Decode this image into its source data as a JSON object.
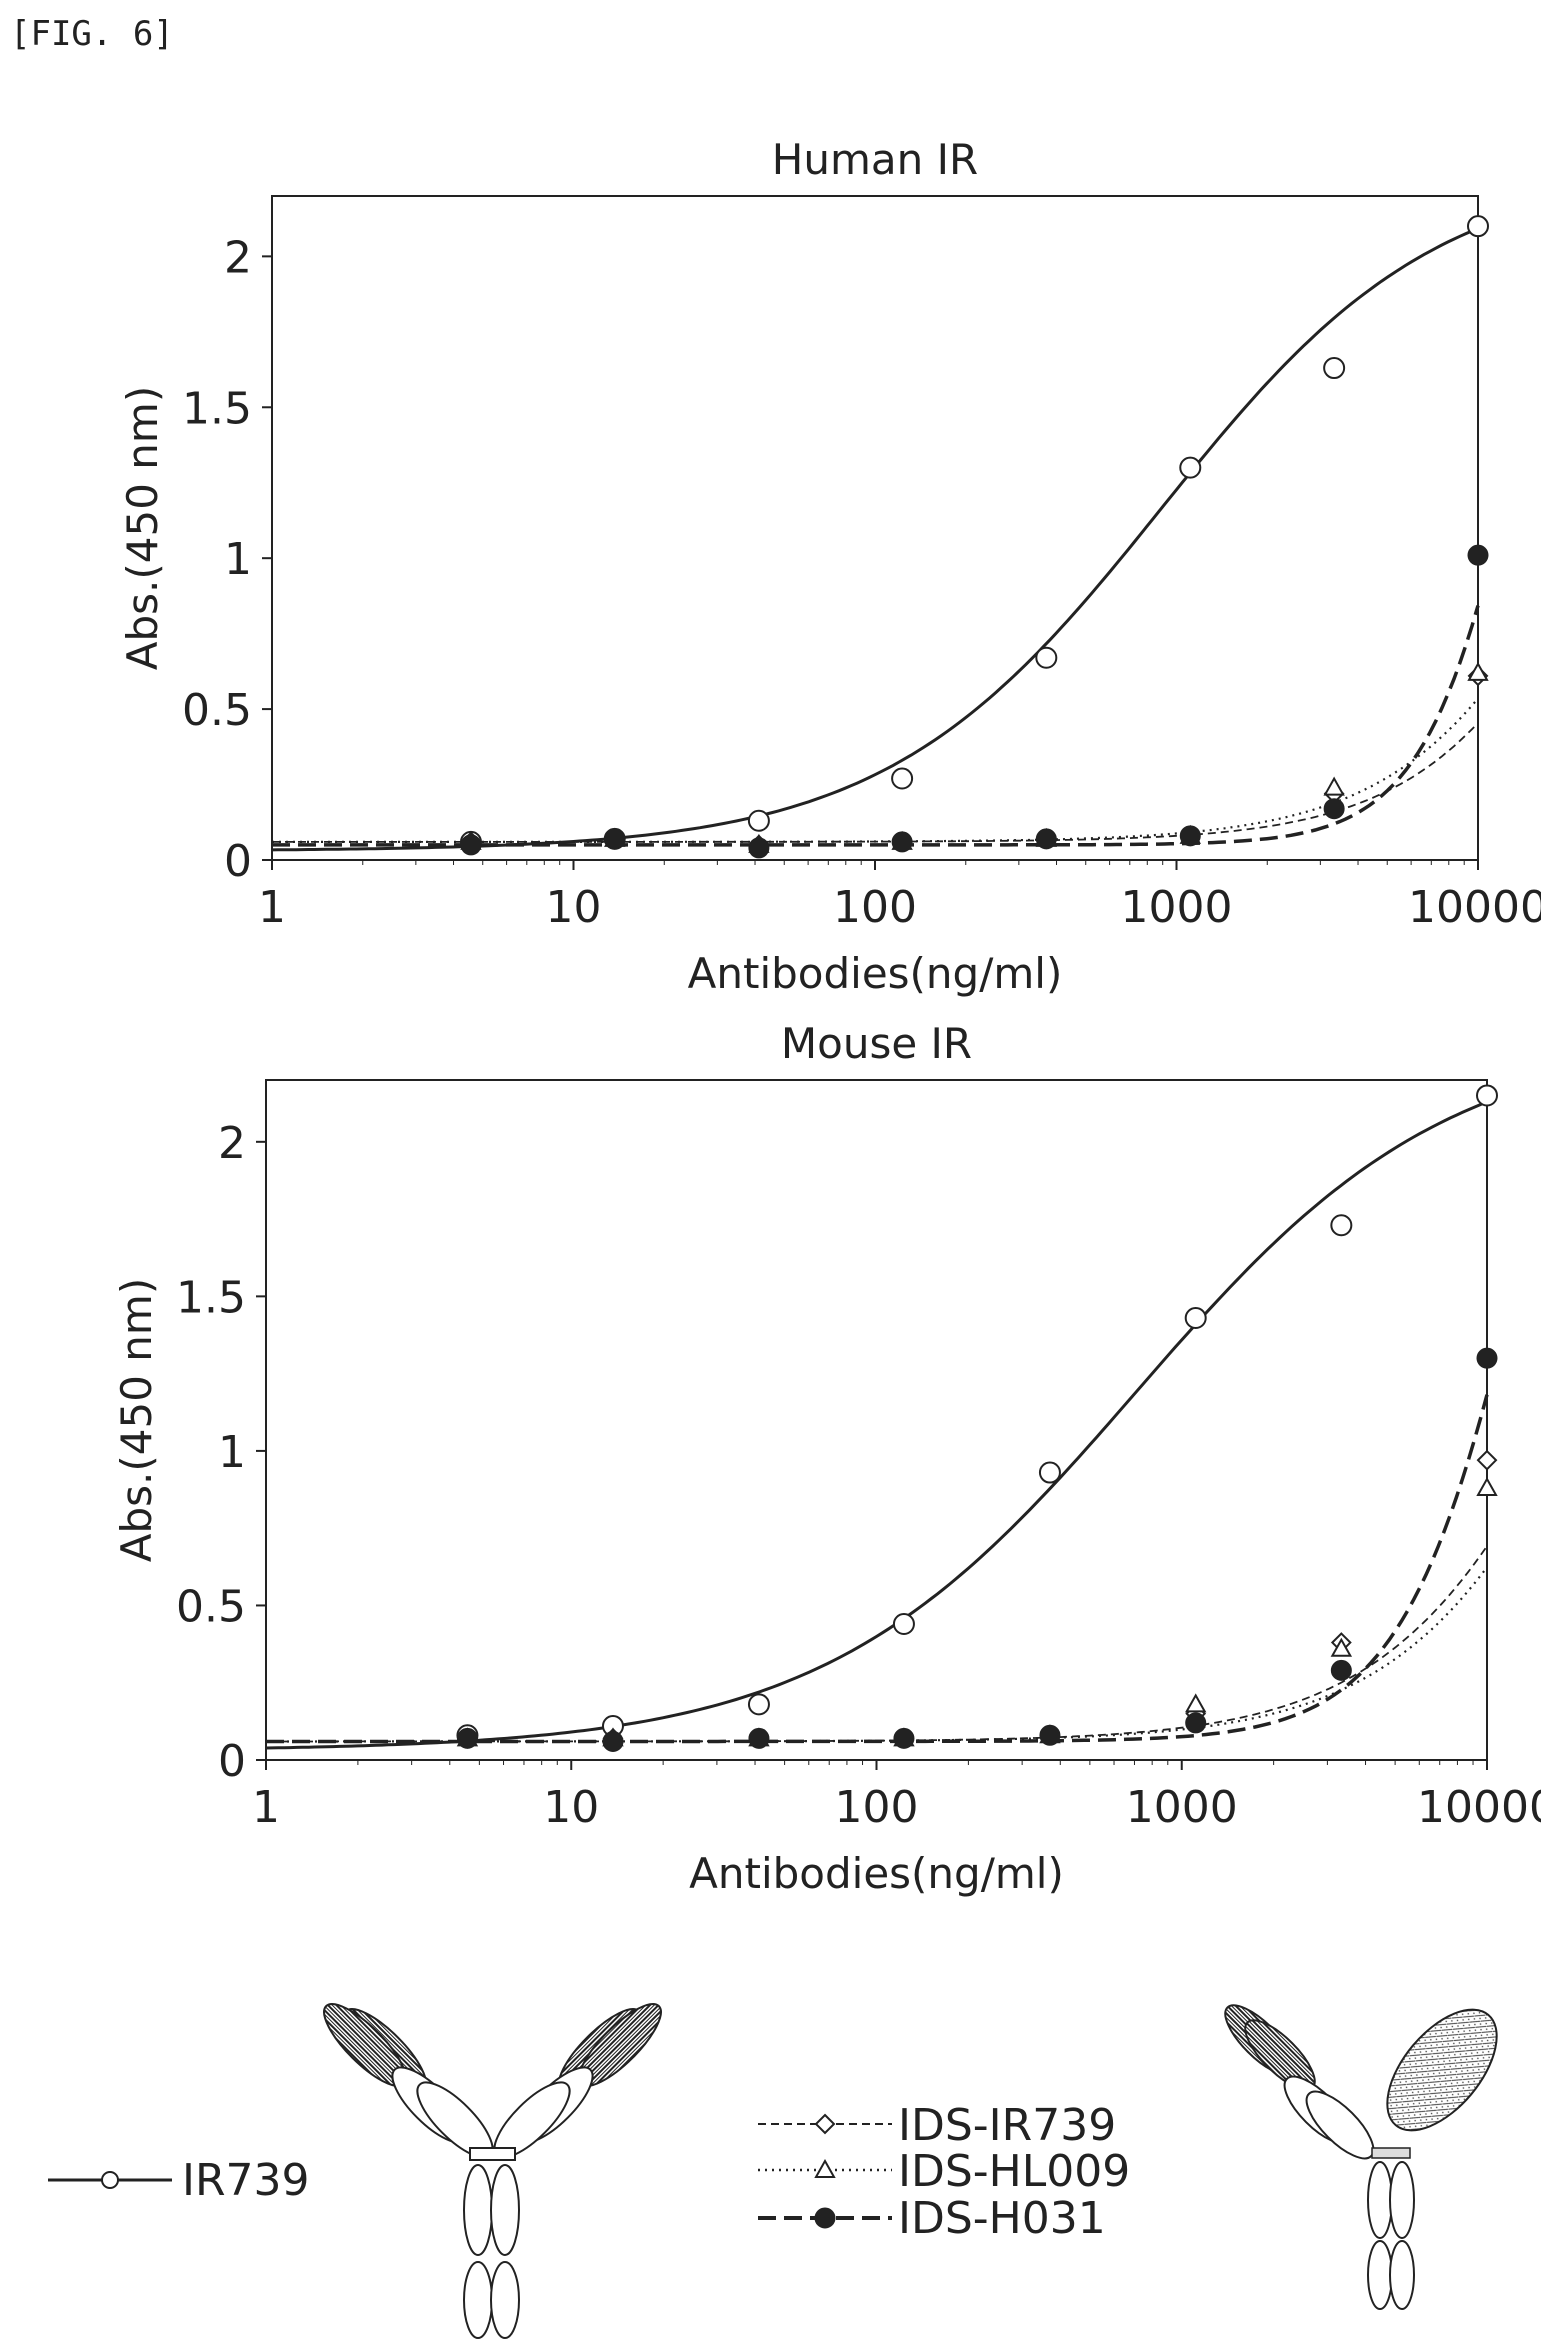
{
  "figure_label": "[FIG. 6]",
  "chart_data": [
    {
      "type": "scatter",
      "title": "Human IR",
      "xlabel": "Antibodies(ng/ml)",
      "ylabel": "Abs.(450 nm)",
      "xscale": "log",
      "xlim": [
        1,
        10000
      ],
      "ylim": [
        0,
        2.2
      ],
      "xticks": [
        "1",
        "10",
        "100",
        "1000",
        "10000"
      ],
      "yticks": [
        "0",
        "0.5",
        "1",
        "1.5",
        "2"
      ],
      "grid": false,
      "series": [
        {
          "name": "IR739",
          "x": [
            4.57,
            13.7,
            41.2,
            123,
            370,
            1111,
            3333,
            10000
          ],
          "y": [
            0.06,
            0.07,
            0.13,
            0.27,
            0.67,
            1.3,
            1.63,
            2.1
          ]
        },
        {
          "name": "IDS-IR739",
          "x": [
            4.57,
            13.7,
            41.2,
            123,
            370,
            1111,
            3333,
            10000
          ],
          "y": [
            0.06,
            0.07,
            0.05,
            0.06,
            0.07,
            0.08,
            0.22,
            0.61
          ]
        },
        {
          "name": "IDS-HL009",
          "x": [
            4.57,
            13.7,
            41.2,
            123,
            370,
            1111,
            3333,
            10000
          ],
          "y": [
            0.06,
            0.07,
            0.05,
            0.06,
            0.07,
            0.08,
            0.24,
            0.62
          ]
        },
        {
          "name": "IDS-H031",
          "x": [
            4.57,
            13.7,
            41.2,
            123,
            370,
            1111,
            3333,
            10000
          ],
          "y": [
            0.05,
            0.07,
            0.04,
            0.06,
            0.07,
            0.08,
            0.17,
            1.01
          ]
        }
      ]
    },
    {
      "type": "scatter",
      "title": "Mouse IR",
      "xlabel": "Antibodies(ng/ml)",
      "ylabel": "Abs.(450 nm)",
      "xscale": "log",
      "xlim": [
        1,
        10000
      ],
      "ylim": [
        0,
        2.2
      ],
      "xticks": [
        "1",
        "10",
        "100",
        "1000",
        "10000"
      ],
      "yticks": [
        "0",
        "0.5",
        "1",
        "1.5",
        "2"
      ],
      "grid": false,
      "series": [
        {
          "name": "IR739",
          "x": [
            4.57,
            13.7,
            41.2,
            123,
            370,
            1111,
            3333,
            10000
          ],
          "y": [
            0.08,
            0.11,
            0.18,
            0.44,
            0.93,
            1.43,
            1.73,
            2.15
          ]
        },
        {
          "name": "IDS-IR739",
          "x": [
            4.57,
            13.7,
            41.2,
            123,
            370,
            1111,
            3333,
            10000
          ],
          "y": [
            0.07,
            0.07,
            0.07,
            0.07,
            0.08,
            0.15,
            0.38,
            0.97
          ]
        },
        {
          "name": "IDS-HL009",
          "x": [
            4.57,
            13.7,
            41.2,
            123,
            370,
            1111,
            3333,
            10000
          ],
          "y": [
            0.07,
            0.07,
            0.07,
            0.07,
            0.08,
            0.18,
            0.36,
            0.88
          ]
        },
        {
          "name": "IDS-H031",
          "x": [
            4.57,
            13.7,
            41.2,
            123,
            370,
            1111,
            3333,
            10000
          ],
          "y": [
            0.07,
            0.06,
            0.07,
            0.07,
            0.08,
            0.12,
            0.29,
            1.3
          ]
        }
      ]
    }
  ],
  "legend": {
    "items": [
      {
        "label": "IR739",
        "series": "IR739"
      },
      {
        "label": "IDS-IR739",
        "series": "IDS-IR739"
      },
      {
        "label": "IDS-HL009",
        "series": "IDS-HL009"
      },
      {
        "label": "IDS-H031",
        "series": "IDS-H031"
      }
    ]
  },
  "colors": {
    "ink": "#222222",
    "hatch_fill": "#cccccc"
  }
}
